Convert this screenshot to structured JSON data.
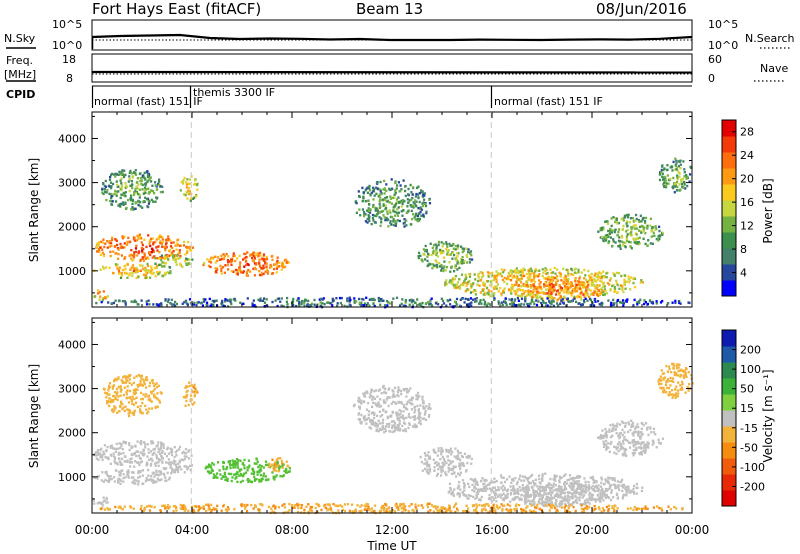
{
  "header": {
    "station": "Fort Hays East (fitACF)",
    "beam": "Beam 13",
    "date": "08/Jun/2016"
  },
  "panels": {
    "nsky": {
      "label": "N.Sky",
      "ticks": [
        "10^5",
        "10^0"
      ]
    },
    "nsearch": {
      "label": "N.Search",
      "ticks": [
        "10^5",
        "10^0"
      ]
    },
    "freq": {
      "label_line1": "Freq.",
      "label_line2": "[MHz]",
      "ticks": [
        "18",
        "8"
      ]
    },
    "nave": {
      "label": "Nave",
      "ticks": [
        "60",
        "0"
      ]
    },
    "cpid": {
      "label": "CPID",
      "modes": [
        {
          "text": "normal (fast)  151 IF"
        },
        {
          "text": "themis 3300 IF"
        },
        {
          "text": "normal (fast) 151 IF"
        }
      ]
    }
  },
  "colors": {
    "power_bar": [
      "#0000ff",
      "#26479b",
      "#43816b",
      "#3c8f4c",
      "#74b241",
      "#c6d640",
      "#fbca1e",
      "#fc9b13",
      "#fc6f0c",
      "#f53a0a",
      "#e30000"
    ],
    "velocity_bar": [
      "#0d1bb0",
      "#1d5aa8",
      "#2c8a4f",
      "#3bb338",
      "#7fcf3f",
      "#c0c0c0",
      "#f3b23a",
      "#f58c10",
      "#f15b0c",
      "#e82a08",
      "#e00000"
    ],
    "ground_scatter": "#c0c0c0"
  },
  "chart_data": [
    {
      "type": "heatmap",
      "name": "Power",
      "ylabel": "Slant Range [km]",
      "xlabel": "Time UT",
      "x_ticks": [
        "00:00",
        "04:00",
        "08:00",
        "12:00",
        "16:00",
        "20:00",
        "00:00"
      ],
      "x_range_hours": [
        0,
        24
      ],
      "y_ticks": [
        1000,
        2000,
        3000,
        4000
      ],
      "ylim": [
        180,
        4600
      ],
      "colorbar": {
        "label": "Power [dB]",
        "ticks": [
          "4",
          "8",
          "12",
          "16",
          "20",
          "24",
          "28"
        ],
        "range": [
          0,
          30
        ]
      },
      "mode_change_lines_hours": [
        3.97,
        15.97
      ],
      "regions": [
        {
          "t": [
            0.0,
            4.0
          ],
          "r": [
            1250,
            1850
          ],
          "v": 24
        },
        {
          "t": [
            0.0,
            3.2
          ],
          "r": [
            850,
            1200
          ],
          "v": 18
        },
        {
          "t": [
            2.4,
            4.0
          ],
          "r": [
            1100,
            1400
          ],
          "v": 14
        },
        {
          "t": [
            0.0,
            0.6
          ],
          "r": [
            350,
            600
          ],
          "v": 20
        },
        {
          "t": [
            4.4,
            7.9
          ],
          "r": [
            900,
            1450
          ],
          "v": 24
        },
        {
          "t": [
            0.3,
            2.8
          ],
          "r": [
            2400,
            3350
          ],
          "v": 10
        },
        {
          "t": [
            3.5,
            4.2
          ],
          "r": [
            2600,
            3200
          ],
          "v": 16
        },
        {
          "t": [
            10.4,
            13.5
          ],
          "r": [
            2000,
            3100
          ],
          "v": 9
        },
        {
          "t": [
            13.0,
            15.2
          ],
          "r": [
            1000,
            1700
          ],
          "v": 12
        },
        {
          "t": [
            14.0,
            22.0
          ],
          "r": [
            400,
            1100
          ],
          "v": 18
        },
        {
          "t": [
            16.6,
            20.6
          ],
          "r": [
            350,
            900
          ],
          "v": 22
        },
        {
          "t": [
            20.2,
            22.8
          ],
          "r": [
            1500,
            2300
          ],
          "v": 12
        },
        {
          "t": [
            22.6,
            24.0
          ],
          "r": [
            2800,
            3600
          ],
          "v": 10
        },
        {
          "t": [
            0.0,
            24.0
          ],
          "r": [
            200,
            420
          ],
          "v": 6
        }
      ]
    },
    {
      "type": "heatmap",
      "name": "Velocity",
      "ylabel": "Slant Range [km]",
      "xlabel": "Time UT",
      "x_ticks": [
        "00:00",
        "04:00",
        "08:00",
        "12:00",
        "16:00",
        "20:00",
        "00:00"
      ],
      "x_range_hours": [
        0,
        24
      ],
      "y_ticks": [
        1000,
        2000,
        3000,
        4000
      ],
      "ylim": [
        180,
        4600
      ],
      "colorbar": {
        "label": "Velocity [m s⁻¹]",
        "ticks": [
          "200",
          "100",
          "50",
          "15",
          "-15",
          "-50",
          "-100",
          "-200"
        ],
        "range": [
          -250,
          250
        ]
      },
      "mode_change_lines_hours": [
        3.97,
        15.97
      ],
      "regions": [
        {
          "t": [
            0.0,
            4.0
          ],
          "r": [
            1250,
            1850
          ],
          "v": 0
        },
        {
          "t": [
            0.0,
            3.2
          ],
          "r": [
            850,
            1200
          ],
          "v": 0
        },
        {
          "t": [
            2.4,
            4.0
          ],
          "r": [
            1100,
            1400
          ],
          "v": 0
        },
        {
          "t": [
            0.0,
            0.6
          ],
          "r": [
            350,
            600
          ],
          "v": 0
        },
        {
          "t": [
            4.4,
            7.9
          ],
          "r": [
            900,
            1450
          ],
          "v": 60
        },
        {
          "t": [
            7.0,
            7.9
          ],
          "r": [
            1150,
            1450
          ],
          "v": -40
        },
        {
          "t": [
            0.3,
            2.8
          ],
          "r": [
            2400,
            3350
          ],
          "v": -30
        },
        {
          "t": [
            3.5,
            4.2
          ],
          "r": [
            2600,
            3200
          ],
          "v": -40
        },
        {
          "t": [
            10.4,
            13.5
          ],
          "r": [
            2000,
            3100
          ],
          "v": 0
        },
        {
          "t": [
            13.0,
            15.2
          ],
          "r": [
            1000,
            1700
          ],
          "v": 0
        },
        {
          "t": [
            14.0,
            22.0
          ],
          "r": [
            400,
            1100
          ],
          "v": 0
        },
        {
          "t": [
            16.6,
            20.6
          ],
          "r": [
            350,
            900
          ],
          "v": 0
        },
        {
          "t": [
            20.2,
            22.8
          ],
          "r": [
            1500,
            2300
          ],
          "v": 0
        },
        {
          "t": [
            22.6,
            24.0
          ],
          "r": [
            2800,
            3600
          ],
          "v": -30
        },
        {
          "t": [
            0.0,
            24.0
          ],
          "r": [
            200,
            420
          ],
          "v": -45
        }
      ]
    }
  ]
}
